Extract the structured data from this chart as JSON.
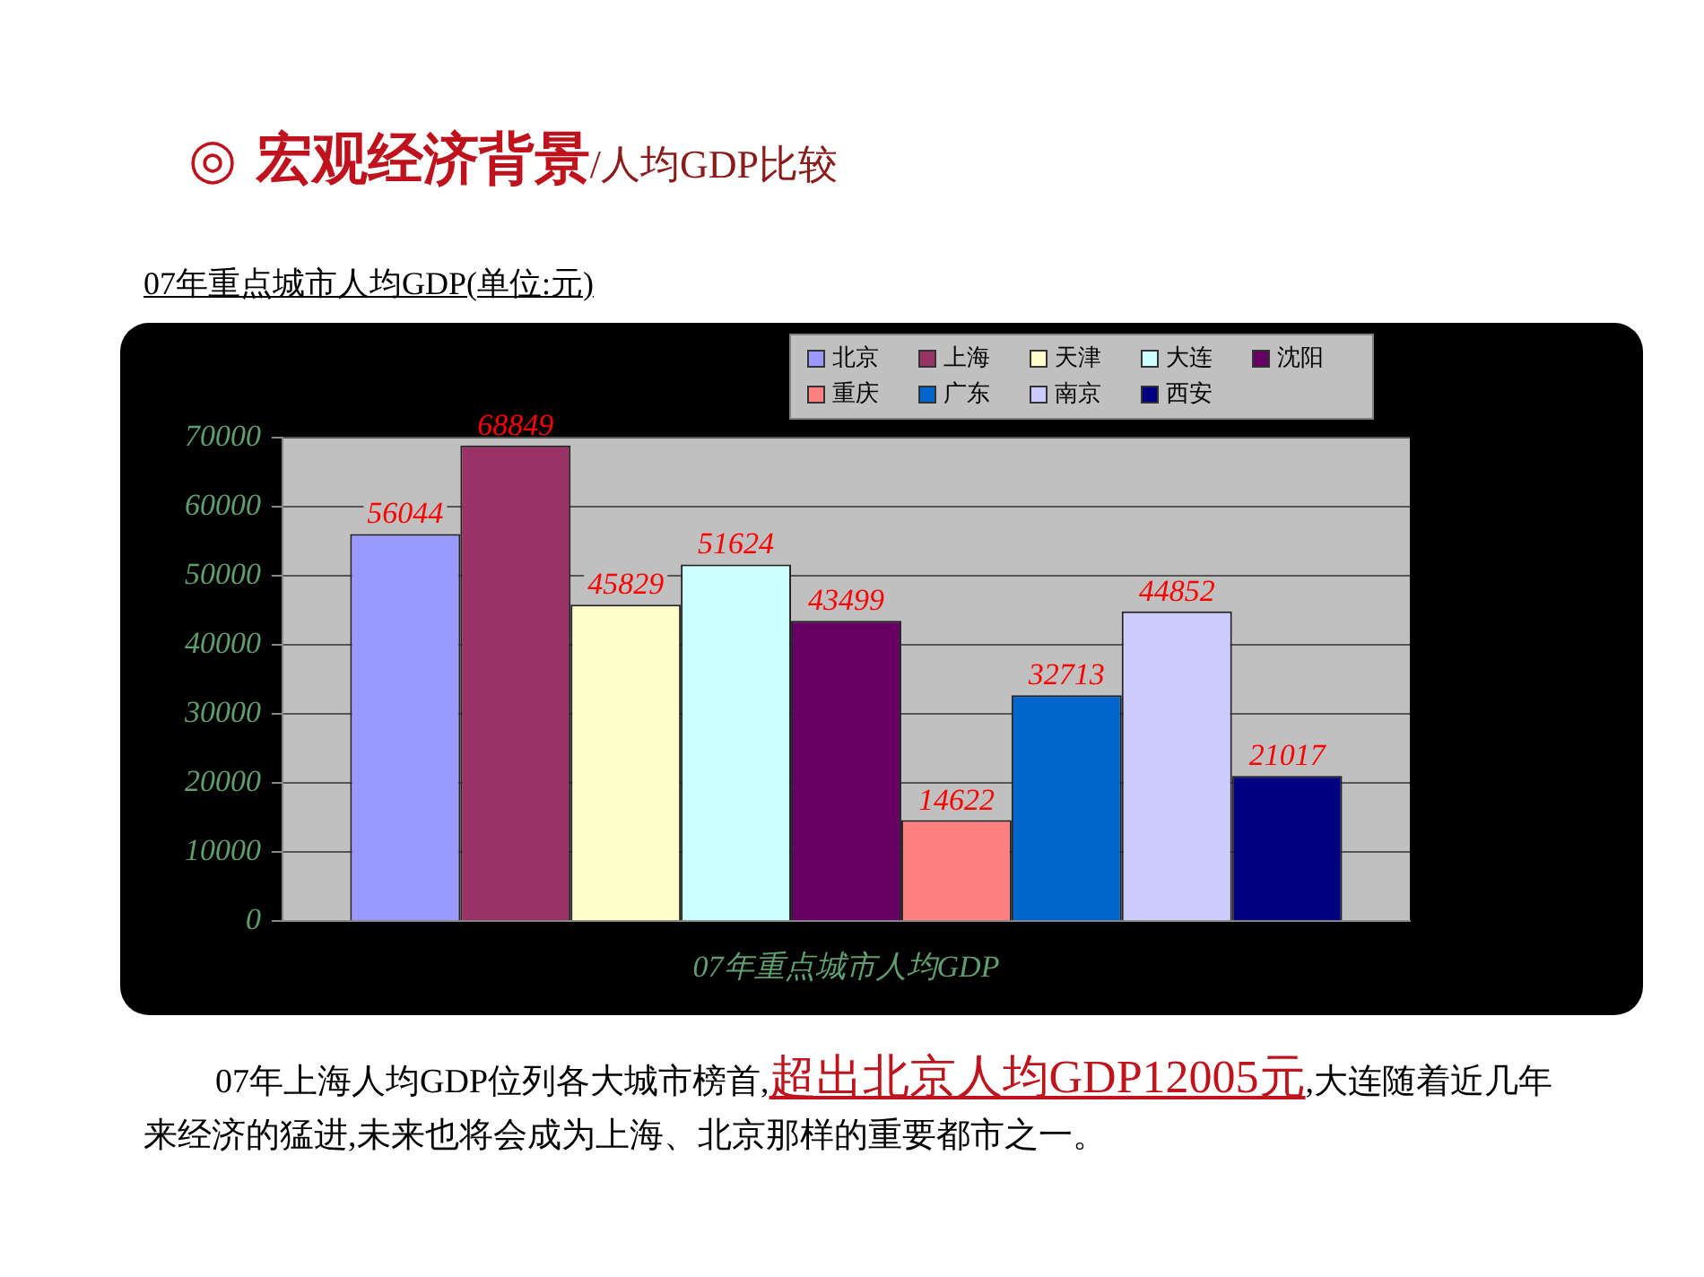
{
  "chart_data": {
    "type": "bar",
    "title": "◎ 宏观经济背景/人均GDP比较",
    "subtitle": "07年重点城市人均GDP(单位:元)",
    "categories": [
      "07年重点城市人均GDP"
    ],
    "series": [
      {
        "name": "北京",
        "color": "#9999ff",
        "values": [
          56044
        ]
      },
      {
        "name": "上海",
        "color": "#993366",
        "values": [
          68849
        ]
      },
      {
        "name": "天津",
        "color": "#ffffcc",
        "values": [
          45829
        ]
      },
      {
        "name": "大连",
        "color": "#ccffff",
        "values": [
          51624
        ]
      },
      {
        "name": "沈阳",
        "color": "#660066",
        "values": [
          43499
        ]
      },
      {
        "name": "重庆",
        "color": "#ff8080",
        "values": [
          14622
        ]
      },
      {
        "name": "广东",
        "color": "#0066cc",
        "values": [
          32713
        ]
      },
      {
        "name": "南京",
        "color": "#ccccff",
        "values": [
          44852
        ]
      },
      {
        "name": "西安",
        "color": "#000080",
        "values": [
          21017
        ]
      }
    ],
    "ylim": [
      0,
      70000
    ],
    "yticks": [
      0,
      10000,
      20000,
      30000,
      40000,
      50000,
      60000,
      70000
    ],
    "grid": "y",
    "legend": "top right",
    "data_labels": true,
    "annotations": [
      "07年上海人均GDP位列各大城市榜首,",
      "超出北京人均GDP12005元",
      ",大连随着近几年来经济的猛进,未来也将会成为上海、北京那样的重要都市之一。"
    ]
  }
}
